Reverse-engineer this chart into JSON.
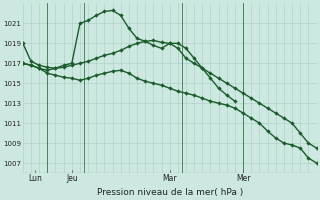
{
  "bg_color": "#cce8e0",
  "grid_color": "#aaccc4",
  "line_color": "#1a5c2a",
  "title": "Pression niveau de la mer( hPa )",
  "ylim": [
    1006.0,
    1023.0
  ],
  "yticks": [
    1007,
    1009,
    1011,
    1013,
    1015,
    1017,
    1019,
    1021
  ],
  "xlim": [
    0,
    36
  ],
  "xticklabels": [
    "Lun",
    "Jeu",
    "Mar",
    "Mer"
  ],
  "xtick_pos": [
    1.5,
    6.0,
    18.0,
    27.0
  ],
  "xvlines": [
    3.0,
    7.5,
    19.5,
    27.0
  ],
  "line1_x": [
    0,
    1,
    2,
    3,
    4,
    5,
    6,
    7,
    8,
    9,
    10,
    11,
    12,
    13,
    14,
    15,
    16,
    17,
    18,
    19,
    20,
    21,
    22,
    23,
    24,
    25,
    26,
    27,
    28,
    29,
    30,
    31,
    32,
    33,
    34,
    35,
    36
  ],
  "line1_y": [
    1019.0,
    1017.2,
    1016.8,
    1016.6,
    1016.5,
    1016.6,
    1016.8,
    1017.0,
    1017.2,
    1017.5,
    1017.8,
    1018.0,
    1018.3,
    1018.7,
    1019.0,
    1019.2,
    1019.3,
    1019.1,
    1019.0,
    1018.5,
    1017.5,
    1017.0,
    1016.5,
    1016.0,
    1015.5,
    1015.0,
    1014.5,
    1014.0,
    1013.5,
    1013.0,
    1012.5,
    1012.0,
    1011.5,
    1011.0,
    1010.0,
    1009.0,
    1008.5
  ],
  "line2_x": [
    0,
    1,
    2,
    3,
    4,
    5,
    6,
    7,
    8,
    9,
    10,
    11,
    12,
    13,
    14,
    15,
    16,
    17,
    18,
    19,
    20,
    21,
    22,
    23,
    24,
    25,
    26
  ],
  "line2_y": [
    1017.0,
    1016.8,
    1016.5,
    1016.3,
    1016.5,
    1016.8,
    1017.0,
    1021.0,
    1021.3,
    1021.8,
    1022.2,
    1022.3,
    1021.8,
    1020.5,
    1019.5,
    1019.2,
    1018.8,
    1018.5,
    1019.0,
    1019.0,
    1018.5,
    1017.5,
    1016.5,
    1015.5,
    1014.5,
    1013.8,
    1013.2
  ],
  "line3_x": [
    0,
    1,
    2,
    3,
    4,
    5,
    6,
    7,
    8,
    9,
    10,
    11,
    12,
    13,
    14,
    15,
    16,
    17,
    18,
    19,
    20,
    21,
    22,
    23,
    24,
    25,
    26,
    27,
    28,
    29,
    30,
    31,
    32,
    33,
    34,
    35,
    36
  ],
  "line3_y": [
    1017.0,
    1016.8,
    1016.5,
    1016.0,
    1015.8,
    1015.6,
    1015.5,
    1015.3,
    1015.5,
    1015.8,
    1016.0,
    1016.2,
    1016.3,
    1016.0,
    1015.5,
    1015.2,
    1015.0,
    1014.8,
    1014.5,
    1014.2,
    1014.0,
    1013.8,
    1013.5,
    1013.2,
    1013.0,
    1012.8,
    1012.5,
    1012.0,
    1011.5,
    1011.0,
    1010.2,
    1009.5,
    1009.0,
    1008.8,
    1008.5,
    1007.5,
    1007.0
  ]
}
